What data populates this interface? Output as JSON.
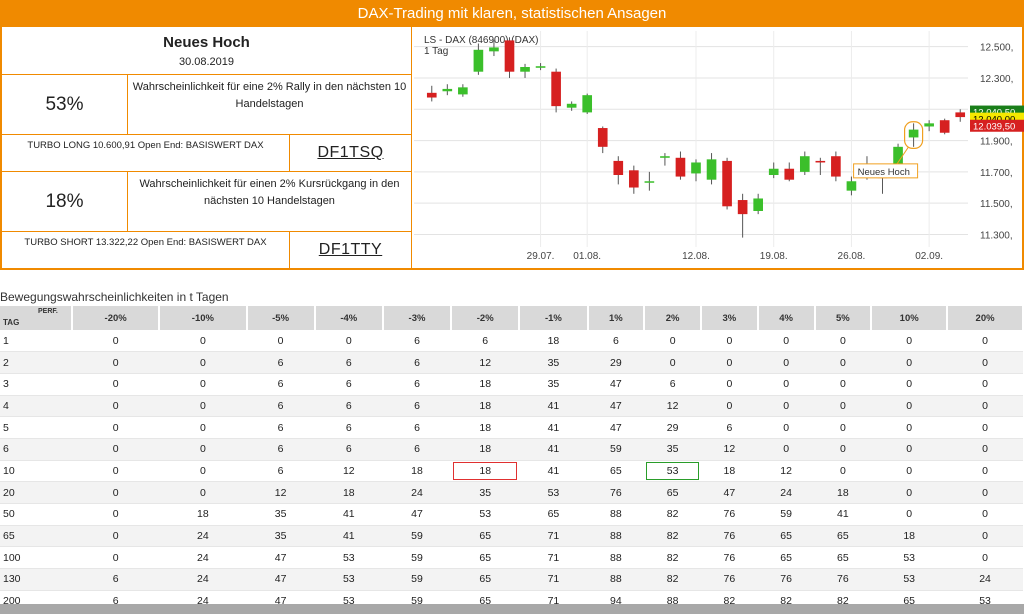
{
  "banner": {
    "title": "DAX-Trading mit klaren, statistischen Ansagen"
  },
  "signal": {
    "headline": "Neues Hoch",
    "date": "30.08.2019",
    "rally": {
      "percent": "53%",
      "text": "Wahrscheinlichkeit für eine 2% Rally in den nächsten 10 Handelstagen"
    },
    "long": {
      "label": "TURBO LONG 10.600,91 Open End: BASISWERT DAX",
      "code": "DF1TSQ"
    },
    "drop": {
      "percent": "18%",
      "text": "Wahrscheinlichkeit für einen 2% Kursrückgang in den nächsten 10 Handelstagen"
    },
    "short": {
      "label": "TURBO SHORT 13.322,22 Open End: BASISWERT DAX",
      "code": "DF1TTY"
    }
  },
  "chart_data": {
    "type": "candlestick",
    "title": "LS - DAX (846900) (DAX)",
    "subtitle": "1 Tag",
    "y_ticks": [
      "12.500,",
      "12.300,",
      "12.100,",
      "11.900,",
      "11.700,",
      "11.500,",
      "11.300,"
    ],
    "y_tick_values": [
      12500,
      12300,
      12100,
      11900,
      11700,
      11500,
      11300
    ],
    "x_ticks": [
      "29.07.",
      "01.08.",
      "12.08.",
      "19.08.",
      "26.08.",
      "02.09."
    ],
    "x_tick_index": [
      7,
      10,
      17,
      22,
      27,
      32
    ],
    "ylim": [
      11220,
      12600
    ],
    "annotation": "Neues Hoch",
    "price_labels": [
      {
        "text": "12.040,50",
        "color": "#1a7f1a",
        "value": 12047
      },
      {
        "text": "12.040,00",
        "color": "#f5e800",
        "value": 12040
      },
      {
        "text": "12.039,50",
        "color": "#d62020",
        "value": 12033
      }
    ],
    "candles": [
      {
        "o": 12205,
        "c": 12175,
        "h": 12250,
        "l": 12150
      },
      {
        "o": 12215,
        "c": 12230,
        "h": 12260,
        "l": 12190
      },
      {
        "o": 12195,
        "c": 12240,
        "h": 12260,
        "l": 12180
      },
      {
        "o": 12340,
        "c": 12480,
        "h": 12520,
        "l": 12320
      },
      {
        "o": 12470,
        "c": 12495,
        "h": 12540,
        "l": 12440
      },
      {
        "o": 12540,
        "c": 12340,
        "h": 12560,
        "l": 12300
      },
      {
        "o": 12340,
        "c": 12370,
        "h": 12390,
        "l": 12300
      },
      {
        "o": 12365,
        "c": 12375,
        "h": 12395,
        "l": 12350
      },
      {
        "o": 12340,
        "c": 12120,
        "h": 12360,
        "l": 12080
      },
      {
        "o": 12110,
        "c": 12135,
        "h": 12150,
        "l": 12090
      },
      {
        "o": 12080,
        "c": 12190,
        "h": 12200,
        "l": 12070
      },
      {
        "o": 11980,
        "c": 11860,
        "h": 11990,
        "l": 11820
      },
      {
        "o": 11770,
        "c": 11680,
        "h": 11800,
        "l": 11620
      },
      {
        "o": 11710,
        "c": 11600,
        "h": 11740,
        "l": 11560
      },
      {
        "o": 11640,
        "c": 11640,
        "h": 11700,
        "l": 11580
      },
      {
        "o": 11790,
        "c": 11800,
        "h": 11820,
        "l": 11740
      },
      {
        "o": 11790,
        "c": 11670,
        "h": 11830,
        "l": 11650
      },
      {
        "o": 11690,
        "c": 11760,
        "h": 11780,
        "l": 11640
      },
      {
        "o": 11650,
        "c": 11780,
        "h": 11820,
        "l": 11620
      },
      {
        "o": 11770,
        "c": 11480,
        "h": 11790,
        "l": 11460
      },
      {
        "o": 11520,
        "c": 11430,
        "h": 11560,
        "l": 11280
      },
      {
        "o": 11450,
        "c": 11530,
        "h": 11560,
        "l": 11430
      },
      {
        "o": 11680,
        "c": 11720,
        "h": 11760,
        "l": 11660
      },
      {
        "o": 11720,
        "c": 11650,
        "h": 11760,
        "l": 11640
      },
      {
        "o": 11700,
        "c": 11800,
        "h": 11830,
        "l": 11680
      },
      {
        "o": 11770,
        "c": 11760,
        "h": 11790,
        "l": 11680
      },
      {
        "o": 11800,
        "c": 11670,
        "h": 11830,
        "l": 11640
      },
      {
        "o": 11580,
        "c": 11640,
        "h": 11670,
        "l": 11550
      },
      {
        "o": 11690,
        "c": 11730,
        "h": 11800,
        "l": 11650
      },
      {
        "o": 11690,
        "c": 11660,
        "h": 11720,
        "l": 11560
      },
      {
        "o": 11720,
        "c": 11860,
        "h": 11880,
        "l": 11700
      },
      {
        "o": 11920,
        "c": 11970,
        "h": 12010,
        "l": 11860
      },
      {
        "o": 11990,
        "c": 12010,
        "h": 12030,
        "l": 11960
      },
      {
        "o": 12030,
        "c": 11950,
        "h": 12040,
        "l": 11940
      },
      {
        "o": 12080,
        "c": 12050,
        "h": 12100,
        "l": 12020
      }
    ]
  },
  "table": {
    "title": "Bewegungswahrscheinlichkeiten in t Tagen",
    "perf_label": "PERF.",
    "tag_label": "TAG",
    "columns": [
      "-20%",
      "-10%",
      "-5%",
      "-4%",
      "-3%",
      "-2%",
      "-1%",
      "1%",
      "2%",
      "3%",
      "4%",
      "5%",
      "10%",
      "20%"
    ],
    "rows": [
      {
        "day": "1",
        "values": [
          "0",
          "0",
          "0",
          "0",
          "6",
          "6",
          "18",
          "6",
          "0",
          "0",
          "0",
          "0",
          "0",
          "0"
        ]
      },
      {
        "day": "2",
        "values": [
          "0",
          "0",
          "6",
          "6",
          "6",
          "12",
          "35",
          "29",
          "0",
          "0",
          "0",
          "0",
          "0",
          "0"
        ]
      },
      {
        "day": "3",
        "values": [
          "0",
          "0",
          "6",
          "6",
          "6",
          "18",
          "35",
          "47",
          "6",
          "0",
          "0",
          "0",
          "0",
          "0"
        ]
      },
      {
        "day": "4",
        "values": [
          "0",
          "0",
          "6",
          "6",
          "6",
          "18",
          "41",
          "47",
          "12",
          "0",
          "0",
          "0",
          "0",
          "0"
        ]
      },
      {
        "day": "5",
        "values": [
          "0",
          "0",
          "6",
          "6",
          "6",
          "18",
          "41",
          "47",
          "29",
          "6",
          "0",
          "0",
          "0",
          "0"
        ]
      },
      {
        "day": "6",
        "values": [
          "0",
          "0",
          "6",
          "6",
          "6",
          "18",
          "41",
          "59",
          "35",
          "12",
          "0",
          "0",
          "0",
          "0"
        ]
      },
      {
        "day": "10",
        "values": [
          "0",
          "0",
          "6",
          "12",
          "18",
          "18",
          "41",
          "65",
          "53",
          "18",
          "12",
          "0",
          "0",
          "0"
        ]
      },
      {
        "day": "20",
        "values": [
          "0",
          "0",
          "12",
          "18",
          "24",
          "35",
          "53",
          "76",
          "65",
          "47",
          "24",
          "18",
          "0",
          "0"
        ]
      },
      {
        "day": "50",
        "values": [
          "0",
          "18",
          "35",
          "41",
          "47",
          "53",
          "65",
          "88",
          "82",
          "76",
          "59",
          "41",
          "0",
          "0"
        ]
      },
      {
        "day": "65",
        "values": [
          "0",
          "24",
          "35",
          "41",
          "59",
          "65",
          "71",
          "88",
          "82",
          "76",
          "65",
          "65",
          "18",
          "0"
        ]
      },
      {
        "day": "100",
        "values": [
          "0",
          "24",
          "47",
          "53",
          "59",
          "65",
          "71",
          "88",
          "82",
          "76",
          "65",
          "65",
          "53",
          "0"
        ]
      },
      {
        "day": "130",
        "values": [
          "6",
          "24",
          "47",
          "53",
          "59",
          "65",
          "71",
          "88",
          "82",
          "76",
          "76",
          "76",
          "53",
          "24"
        ]
      },
      {
        "day": "200",
        "values": [
          "6",
          "24",
          "47",
          "53",
          "59",
          "65",
          "71",
          "94",
          "88",
          "82",
          "82",
          "82",
          "65",
          "53"
        ]
      }
    ],
    "highlight_red": {
      "row": 6,
      "col": 5
    },
    "highlight_green": {
      "row": 6,
      "col": 8
    }
  }
}
